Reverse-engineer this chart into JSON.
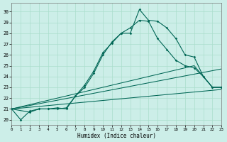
{
  "xlabel": "Humidex (Indice chaleur)",
  "bg_color": "#cceee8",
  "grid_color": "#aaddcc",
  "line_color": "#006655",
  "xlim": [
    0,
    23
  ],
  "ylim": [
    19.5,
    30.8
  ],
  "yticks": [
    20,
    21,
    22,
    23,
    24,
    25,
    26,
    27,
    28,
    29,
    30
  ],
  "xticks": [
    0,
    1,
    2,
    3,
    4,
    5,
    6,
    7,
    8,
    9,
    10,
    11,
    12,
    13,
    14,
    15,
    16,
    17,
    18,
    19,
    20,
    21,
    22,
    23
  ],
  "line1_x": [
    0,
    1,
    2,
    3,
    4,
    5,
    6,
    7,
    8,
    9,
    10,
    11,
    12,
    13,
    14,
    15,
    16,
    17,
    18,
    19,
    20,
    21,
    22,
    23
  ],
  "line1_y": [
    21,
    20,
    20.8,
    21,
    21,
    21.0,
    21.1,
    22.2,
    23.2,
    24.5,
    26.2,
    27.1,
    28.0,
    28.0,
    30.2,
    29.2,
    29.1,
    28.5,
    27.5,
    26.0,
    25.8,
    24.0,
    23.0,
    23.0
  ],
  "line2_x": [
    0,
    2,
    3,
    4,
    5,
    6,
    7,
    8,
    9,
    10,
    11,
    12,
    13,
    14,
    15,
    16,
    17,
    18,
    19,
    20,
    21,
    22,
    23
  ],
  "line2_y": [
    21,
    20.7,
    21.0,
    21,
    21.1,
    21.0,
    22.2,
    23.0,
    24.3,
    26.0,
    27.2,
    28.0,
    28.5,
    29.2,
    29.1,
    27.5,
    26.5,
    25.5,
    25.0,
    24.8,
    24.0,
    23.0,
    23.0
  ],
  "fan_lines": [
    {
      "x": [
        0,
        20,
        22,
        23
      ],
      "y": [
        21,
        25.0,
        23.0,
        23.0
      ]
    },
    {
      "x": [
        0,
        23
      ],
      "y": [
        21,
        24.7
      ]
    },
    {
      "x": [
        0,
        23
      ],
      "y": [
        21,
        22.8
      ]
    }
  ]
}
